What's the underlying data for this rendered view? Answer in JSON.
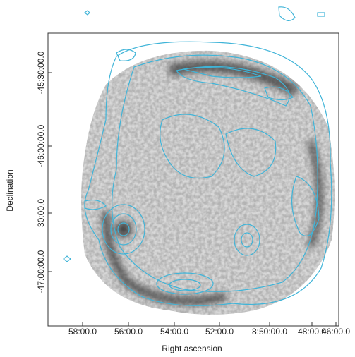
{
  "axes": {
    "x_label": "Right ascension",
    "y_label": "Declination",
    "x_ticks": [
      "58:00.0",
      "56:00.0",
      "54:00.0",
      "52:00.0",
      "8:50:00.0",
      "48:00.0",
      "46:00.0"
    ],
    "y_ticks": [
      "-45:30:00.0",
      "-46:00:00.0",
      "30:00.0",
      "-47:00:00.0"
    ]
  }
}
